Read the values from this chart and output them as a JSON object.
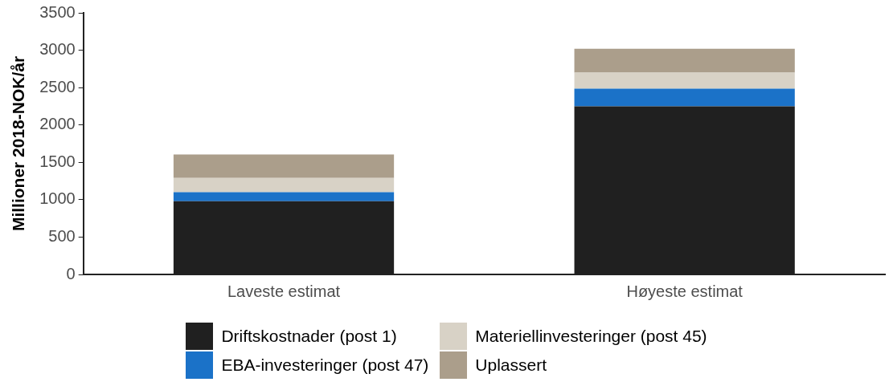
{
  "chart_data": {
    "type": "bar",
    "stacked": true,
    "ylabel": "Millioner 2018-NOK/år",
    "categories": [
      "Laveste estimat",
      "Høyeste estimat"
    ],
    "series": [
      {
        "name": "Driftskostnader (post 1)",
        "color": "#202020",
        "values": [
          980,
          2250
        ]
      },
      {
        "name": "EBA-investeringer (post 47)",
        "color": "#1b72c8",
        "values": [
          120,
          235
        ]
      },
      {
        "name": "Materiellinvesteringer (post 45)",
        "color": "#d8d2c6",
        "values": [
          190,
          215
        ]
      },
      {
        "name": "Uplassert",
        "color": "#ab9e8b",
        "values": [
          315,
          320
        ]
      }
    ],
    "ylim": [
      0,
      3500
    ],
    "yticks": [
      0,
      500,
      1000,
      1500,
      2000,
      2500,
      3000,
      3500
    ],
    "grid": false,
    "legend": "bottom"
  }
}
